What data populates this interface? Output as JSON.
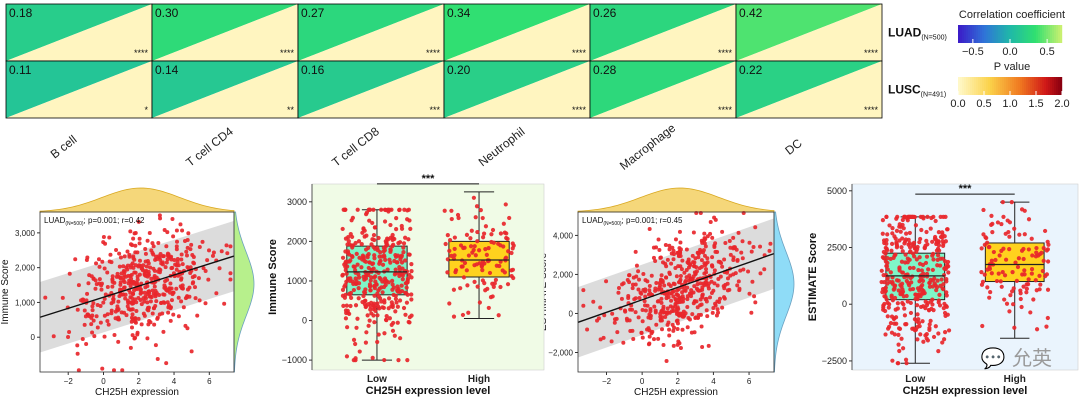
{
  "chart_data": [
    {
      "type": "heatmap",
      "columns": [
        "B cell",
        "T cell CD4",
        "T cell CD8",
        "Neutrophil",
        "Macrophage",
        "DC"
      ],
      "rows": [
        {
          "label": "LUAD",
          "subscript": "(N=500)",
          "r": [
            0.18,
            0.3,
            0.27,
            0.34,
            0.26,
            0.42
          ],
          "stars": [
            "****",
            "****",
            "****",
            "****",
            "****",
            "****"
          ]
        },
        {
          "label": "LUSC",
          "subscript": "(N=491)",
          "r": [
            0.11,
            0.14,
            0.16,
            0.2,
            0.28,
            0.22
          ],
          "stars": [
            "*",
            "**",
            "***",
            "****",
            "****",
            "****"
          ]
        }
      ],
      "legend_correlation": {
        "title": "Correlation coefficient",
        "ticks": [
          "−0.5",
          "0.0",
          "0.5"
        ],
        "range": [
          -0.7,
          0.7
        ]
      },
      "legend_pvalue": {
        "title": "P value",
        "ticks": [
          "0.0",
          "0.5",
          "1.0",
          "1.5",
          "2.0"
        ],
        "range": [
          0,
          2
        ]
      }
    },
    {
      "type": "scatter",
      "annotation_prefix": "LUAD",
      "annotation_sub": "(N=500)",
      "annotation_stats": "; p=0.001; r=0.42",
      "xlabel": "CH25H expression",
      "ylabel": "Immune Score",
      "xticks": [
        "−2",
        "0",
        "2",
        "4",
        "6"
      ],
      "yticks": [
        "0",
        "1,000",
        "2,000",
        "3,000"
      ],
      "xlim": [
        -3.6,
        7.4
      ],
      "ylim": [
        -1000,
        3600
      ],
      "regression": {
        "intercept": 1150,
        "slope": 160
      },
      "marginal_colors": [
        "#f5d77a",
        "#b7f08c"
      ]
    },
    {
      "type": "box",
      "categories": [
        "Low",
        "High"
      ],
      "xlabel": "CH25H expression level",
      "ylabel": "Immune Score",
      "yticks": [
        "−1000",
        "0",
        "1000",
        "2000",
        "3000"
      ],
      "ylim": [
        -1250,
        3450
      ],
      "significance": "***",
      "boxes": [
        {
          "name": "Low",
          "min": -1000,
          "q1": 650,
          "median": 1230,
          "q3": 1880,
          "max": 2800,
          "color": "#7ff5c8"
        },
        {
          "name": "High",
          "min": 50,
          "q1": 1100,
          "median": 1530,
          "q3": 2000,
          "max": 3250,
          "color": "#ffd21e"
        }
      ],
      "background": "#f0fbe6"
    },
    {
      "type": "scatter",
      "annotation_prefix": "LUAD",
      "annotation_sub": "(N=500)",
      "annotation_stats": "; p=0.001; r=0.45",
      "xlabel": "CH25H expression",
      "ylabel": "ESTIMATE Score",
      "xticks": [
        "−2",
        "0",
        "2",
        "4",
        "6"
      ],
      "yticks": [
        "−2,000",
        "0",
        "2,000",
        "4,000"
      ],
      "xlim": [
        -3.6,
        7.4
      ],
      "ylim": [
        -3000,
        5200
      ],
      "regression": {
        "intercept": 700,
        "slope": 320
      },
      "marginal_colors": [
        "#f5d77a",
        "#8fdcf7"
      ]
    },
    {
      "type": "box",
      "categories": [
        "Low",
        "High"
      ],
      "xlabel": "CH25H expression level",
      "ylabel": "ESTIMATE Score",
      "yticks": [
        "−2500",
        "0",
        "2500",
        "5000"
      ],
      "ylim": [
        -2900,
        5300
      ],
      "significance": "***",
      "boxes": [
        {
          "name": "Low",
          "min": -2600,
          "q1": 200,
          "median": 1250,
          "q3": 2250,
          "max": 3850,
          "color": "#7ff5c8"
        },
        {
          "name": "High",
          "min": -1500,
          "q1": 1000,
          "median": 1750,
          "q3": 2700,
          "max": 4500,
          "color": "#ffd21e"
        }
      ],
      "background": "#eaf4fd"
    }
  ],
  "watermark": "💬 允英"
}
